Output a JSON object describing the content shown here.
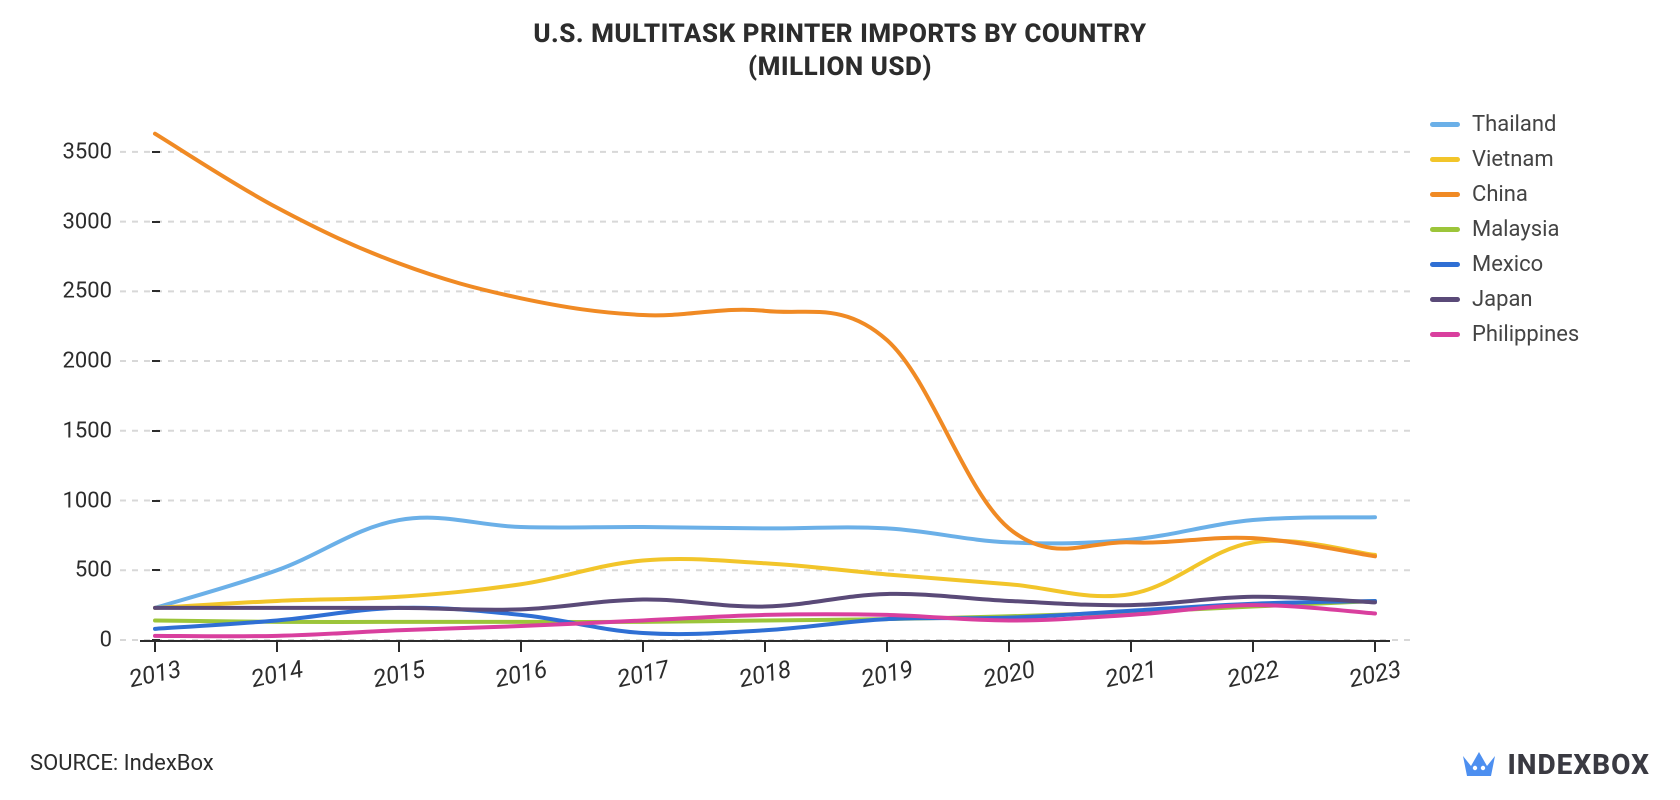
{
  "title": {
    "line1": "U.S. MULTITASK PRINTER IMPORTS BY COUNTRY",
    "line2": "(MILLION USD)",
    "fontsize": 26,
    "color": "#2c2c2c",
    "weight": 800
  },
  "source": {
    "label": "SOURCE:",
    "name": "IndexBox"
  },
  "logo": {
    "text": "INDEXBOX",
    "icon_color": "#4d8ff0"
  },
  "chart": {
    "type": "line",
    "background_color": "#ffffff",
    "grid_color": "#d8d8d8",
    "grid_dash": "6,6",
    "axis_color": "#2c2c2c",
    "line_width": 4,
    "smooth": true,
    "label_fontsize": 22,
    "x": {
      "categories": [
        "2013",
        "2014",
        "2015",
        "2016",
        "2017",
        "2018",
        "2019",
        "2020",
        "2021",
        "2022",
        "2023"
      ],
      "tick_rotation_deg": -12
    },
    "y": {
      "min": 0,
      "max": 3800,
      "ticks": [
        0,
        500,
        1000,
        1500,
        2000,
        2500,
        3000,
        3500
      ]
    },
    "series": [
      {
        "name": "Thailand",
        "color": "#6bb0e8",
        "values": [
          230,
          500,
          860,
          810,
          810,
          800,
          800,
          700,
          720,
          860,
          880
        ]
      },
      {
        "name": "Vietnam",
        "color": "#f2c52a",
        "values": [
          230,
          280,
          310,
          400,
          570,
          550,
          470,
          400,
          330,
          700,
          610
        ]
      },
      {
        "name": "China",
        "color": "#f08a24",
        "values": [
          3630,
          3100,
          2700,
          2450,
          2330,
          2360,
          2150,
          800,
          700,
          730,
          600
        ]
      },
      {
        "name": "Malaysia",
        "color": "#9cc53a",
        "values": [
          140,
          130,
          130,
          130,
          130,
          140,
          150,
          170,
          200,
          240,
          280
        ]
      },
      {
        "name": "Mexico",
        "color": "#2f6fd4",
        "values": [
          80,
          140,
          230,
          180,
          50,
          70,
          150,
          160,
          210,
          260,
          280
        ]
      },
      {
        "name": "Japan",
        "color": "#5a4a78",
        "values": [
          230,
          230,
          230,
          220,
          290,
          240,
          330,
          280,
          250,
          310,
          270
        ]
      },
      {
        "name": "Philippines",
        "color": "#d93f9e",
        "values": [
          30,
          30,
          70,
          100,
          140,
          180,
          180,
          140,
          180,
          250,
          190
        ]
      }
    ]
  }
}
